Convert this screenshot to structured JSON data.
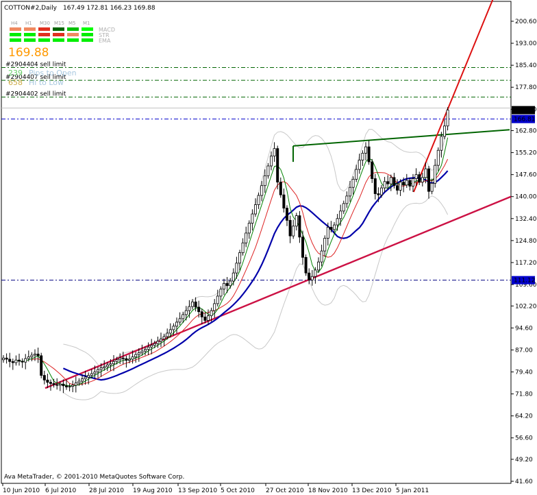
{
  "header": {
    "symbol": "COTTON#2,Daily",
    "ohlc": "167.49 172.81 166.23 169.88"
  },
  "indicator_panel": {
    "timeframes": [
      "H4",
      "H1",
      "M30",
      "M15",
      "M5",
      "M1"
    ],
    "rows": [
      {
        "name": "MACD",
        "colors": [
          "#f08a60",
          "#f08a60",
          "#e03020",
          "#006400",
          "#00c000",
          "#00ff00"
        ]
      },
      {
        "name": "STR",
        "colors": [
          "#00ee00",
          "#00ee00",
          "#e03020",
          "#e03020",
          "#f08a60",
          "#00ee00"
        ]
      },
      {
        "name": "EMA",
        "colors": [
          "#00ee00",
          "#00ee00",
          "#00ee00",
          "#00ee00",
          "#00ee00",
          "#00ee00"
        ]
      }
    ],
    "price": "169.88",
    "pips_value": "239",
    "pips_label": "Pips to Open",
    "hilo_value": "658",
    "hilo_label": "Hi to Low"
  },
  "orders": [
    {
      "label": "#2904404 sell limit",
      "price": 184.6
    },
    {
      "label": "#2904407 sell limit",
      "price": 180.2
    },
    {
      "label": "#2904402 sell limit",
      "price": 174.4
    }
  ],
  "price_badges": [
    {
      "text": "169.88",
      "price": 169.88,
      "bg": "#000000"
    },
    {
      "text": "166.81",
      "price": 166.81,
      "bg": "#0000cc"
    },
    {
      "text": "111.12",
      "price": 111.12,
      "bg": "#0000cc"
    }
  ],
  "copyright": "Ava MetaTrader, © 2001-2010 MetaQuotes Software Corp.",
  "colors": {
    "candle": "#000000",
    "order_line": "#006400",
    "blue_line": "#00008b",
    "ma_fast": "#008000",
    "ma_slow": "#dd2222",
    "ma_long": "#0000aa",
    "band": "#c8c8c8",
    "trend_green": "#006400",
    "trend_red": "#dd1111",
    "trend_support": "#cc1144"
  },
  "chart_data": {
    "type": "candlestick",
    "ylim": [
      41.6,
      208.4
    ],
    "y_ticks": [
      "200.60",
      "193.00",
      "185.40",
      "177.80",
      "170.20",
      "162.80",
      "155.20",
      "147.60",
      "140.00",
      "132.40",
      "124.80",
      "117.20",
      "109.60",
      "102.20",
      "94.60",
      "87.00",
      "79.40",
      "71.80",
      "64.20",
      "56.60",
      "49.20",
      "41.60"
    ],
    "x_labels": [
      "10 Jun 2010",
      "6 Jul 2010",
      "28 Jul 2010",
      "19 Aug 2010",
      "13 Sep 2010",
      "5 Oct 2010",
      "27 Oct 2010",
      "18 Nov 2010",
      "13 Dec 2010",
      "5 Jan 2011"
    ],
    "closes": [
      84.2,
      83.8,
      83.0,
      82.6,
      83.5,
      83.1,
      82.8,
      84.0,
      84.6,
      85.2,
      85.6,
      85.0,
      78.2,
      76.6,
      75.8,
      75.4,
      75.0,
      74.8,
      75.2,
      74.6,
      74.2,
      74.4,
      74.8,
      75.6,
      76.2,
      77.0,
      77.6,
      78.2,
      78.8,
      79.4,
      80.2,
      80.8,
      81.2,
      81.8,
      82.2,
      83.0,
      83.6,
      84.2,
      84.0,
      83.4,
      83.8,
      84.6,
      85.4,
      86.0,
      86.6,
      87.2,
      88.0,
      88.6,
      89.2,
      90.0,
      90.8,
      91.6,
      92.8,
      94.0,
      95.2,
      96.6,
      97.8,
      99.2,
      100.6,
      102.0,
      103.6,
      101.8,
      100.2,
      98.4,
      97.2,
      98.8,
      100.6,
      103.0,
      105.6,
      108.0,
      110.0,
      109.2,
      110.8,
      113.6,
      117.0,
      120.6,
      124.0,
      127.4,
      130.8,
      134.0,
      137.2,
      140.4,
      143.8,
      147.2,
      150.6,
      154.0,
      156.6,
      145.0,
      140.6,
      136.0,
      131.8,
      126.4,
      129.8,
      133.4,
      126.0,
      119.0,
      113.6,
      111.2,
      112.4,
      114.6,
      117.4,
      121.2,
      125.6,
      129.4,
      128.6,
      130.2,
      132.4,
      135.0,
      137.6,
      140.2,
      143.2,
      146.0,
      149.4,
      152.6,
      155.0,
      157.2,
      152.0,
      146.2,
      141.0,
      140.6,
      143.0,
      145.2,
      144.4,
      146.6,
      143.8,
      142.2,
      145.0,
      144.0,
      145.6,
      143.6,
      146.2,
      147.6,
      145.0,
      146.6,
      149.6,
      141.8,
      144.6,
      150.8,
      156.0,
      160.8,
      164.4,
      169.9
    ],
    "trendlines": [
      {
        "name": "resistance",
        "from": [
          428,
          157.5
        ],
        "to": [
          744,
          163.1
        ]
      },
      {
        "name": "support",
        "from": [
          66,
          73.8
        ],
        "to": [
          746,
          140.0
        ]
      },
      {
        "name": "breakout",
        "from": [
          604,
          141.6
        ],
        "to": [
          722,
          209.6
        ]
      }
    ],
    "hlines": [
      {
        "price": 166.81,
        "color": "#0000cc"
      },
      {
        "price": 111.12,
        "color": "#000080"
      }
    ]
  }
}
